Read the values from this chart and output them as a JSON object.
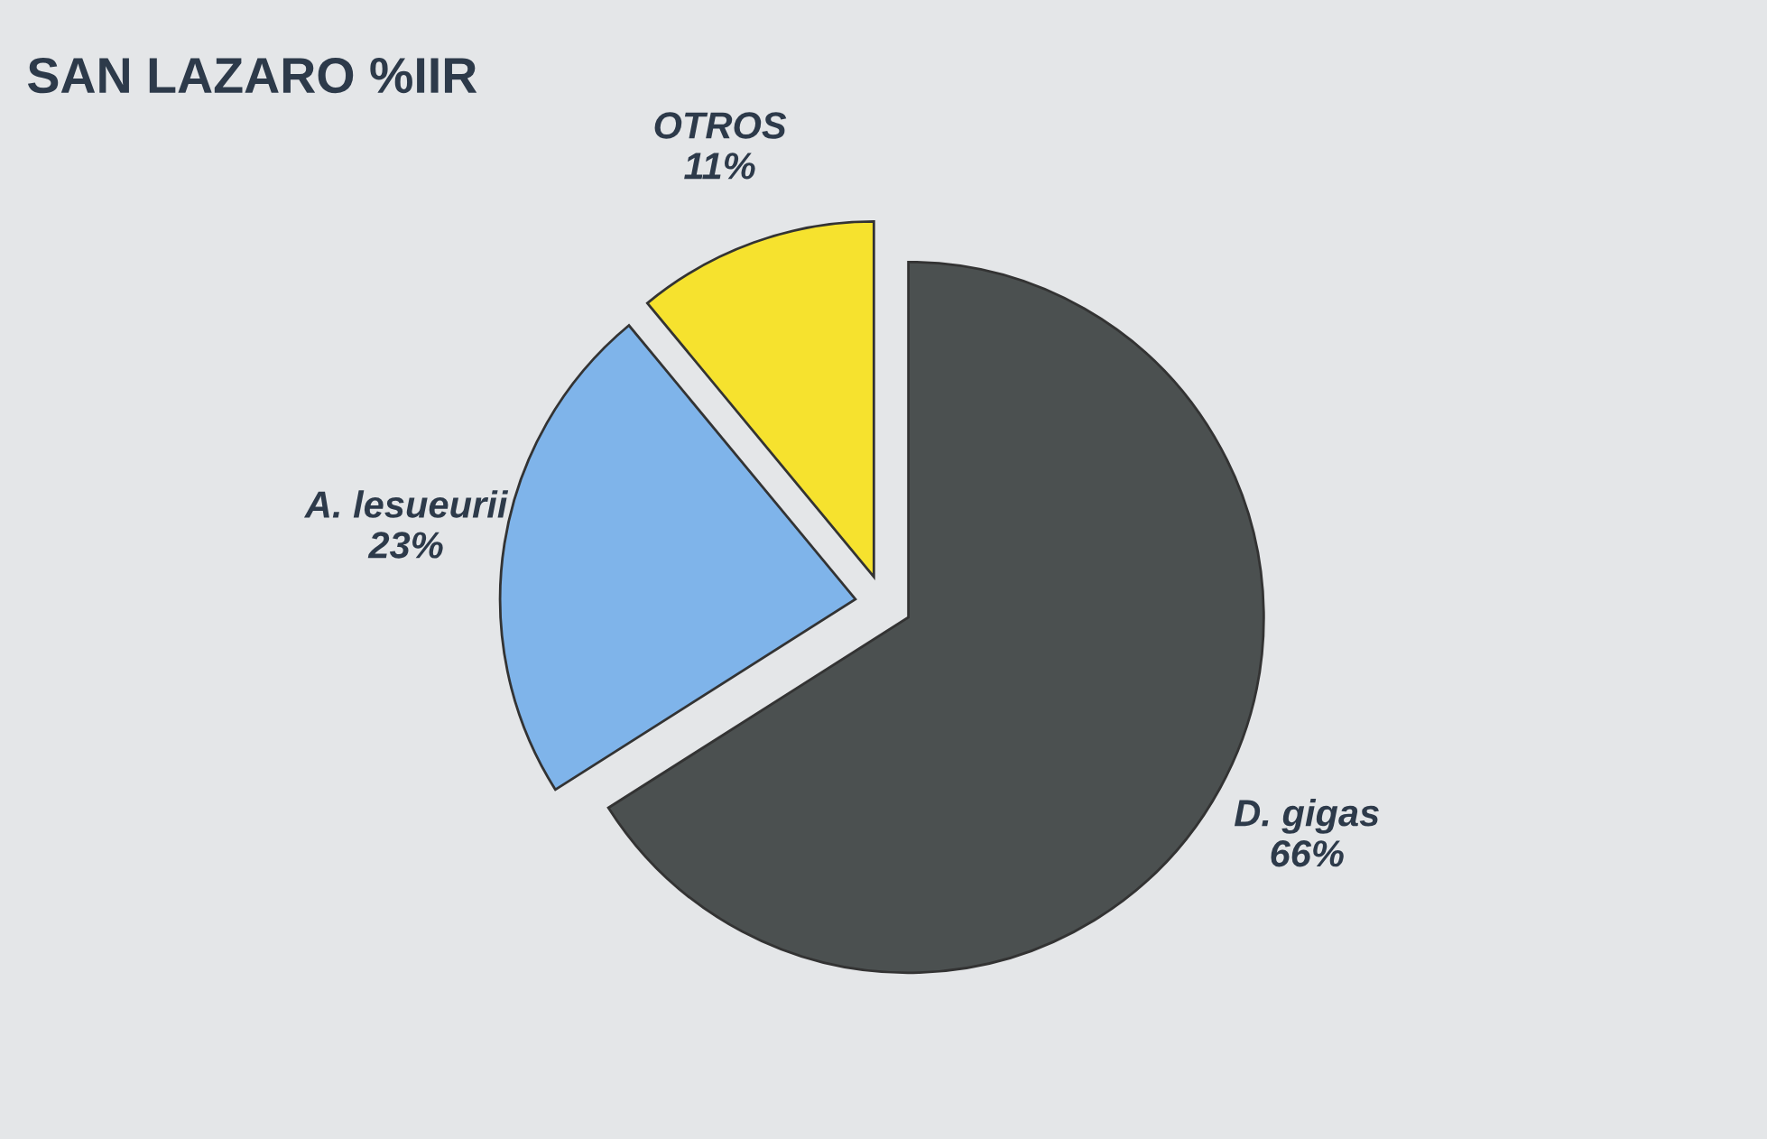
{
  "chart_data": {
    "type": "pie",
    "title": "SAN LAZARO %IIR",
    "categories": [
      "D. gigas",
      "A. lesueurii",
      "OTROS"
    ],
    "values": [
      66,
      23,
      11
    ],
    "value_labels": [
      "66%",
      "23%",
      "11%"
    ],
    "colors": [
      "#4b5050",
      "#7fb4ea",
      "#f6e22e"
    ]
  }
}
